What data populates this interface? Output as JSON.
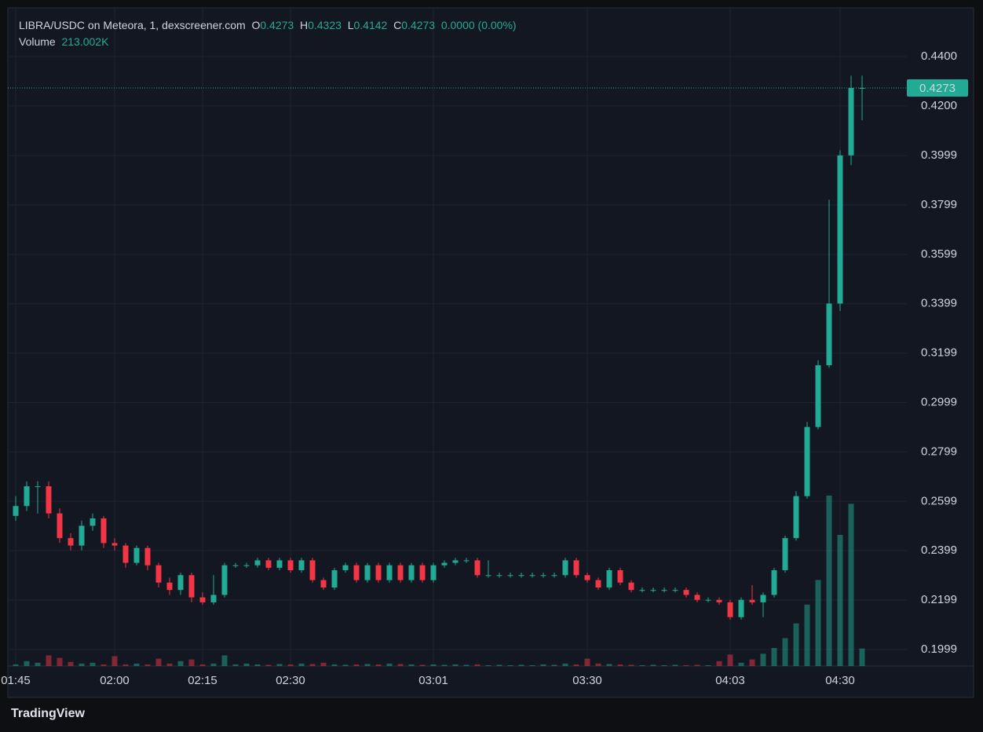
{
  "header": {
    "symbol": "LIBRA/USDC on Meteora, 1, dexscreener.com",
    "ohlc": [
      {
        "label": "O",
        "value": 0.4273
      },
      {
        "label": "H",
        "value": 0.4323
      },
      {
        "label": "L",
        "value": 0.4142
      },
      {
        "label": "C",
        "value": 0.4273
      }
    ],
    "change": "0.0000 (0.00%)",
    "volume_label": "Volume",
    "volume_value": "213.002K"
  },
  "brand": "TradingView",
  "chart_data": {
    "type": "candlestick",
    "categories": [
      "01:45",
      null,
      null,
      null,
      null,
      null,
      null,
      null,
      null,
      "02:00",
      null,
      null,
      null,
      null,
      null,
      null,
      null,
      "02:15",
      null,
      null,
      null,
      null,
      null,
      null,
      null,
      "02:30",
      null,
      null,
      null,
      null,
      null,
      null,
      null,
      null,
      null,
      null,
      null,
      null,
      "03:01",
      null,
      null,
      null,
      null,
      null,
      null,
      null,
      null,
      null,
      null,
      null,
      null,
      null,
      "03:30",
      null,
      null,
      null,
      null,
      null,
      null,
      null,
      null,
      null,
      null,
      null,
      null,
      "04:03",
      null,
      null,
      null,
      null,
      null,
      null,
      null,
      null,
      null,
      "04:30",
      null,
      null
    ],
    "open": [
      0.254,
      0.258,
      0.266,
      0.266,
      0.255,
      0.245,
      0.242,
      0.25,
      0.253,
      0.243,
      0.242,
      0.235,
      0.241,
      0.234,
      0.227,
      0.224,
      0.23,
      0.221,
      0.219,
      0.222,
      0.234,
      0.234,
      0.234,
      0.236,
      0.233,
      0.236,
      0.232,
      0.236,
      0.228,
      0.225,
      0.232,
      0.234,
      0.228,
      0.234,
      0.228,
      0.234,
      0.228,
      0.234,
      0.228,
      0.234,
      0.235,
      0.236,
      0.236,
      0.23,
      0.23,
      0.23,
      0.23,
      0.23,
      0.23,
      0.23,
      0.23,
      0.236,
      0.23,
      0.228,
      0.225,
      0.232,
      0.227,
      0.224,
      0.224,
      0.224,
      0.224,
      0.224,
      0.222,
      0.22,
      0.22,
      0.219,
      0.213,
      0.22,
      0.219,
      0.222,
      0.232,
      0.245,
      0.262,
      0.29,
      0.315,
      0.34,
      0.4,
      0.4273
    ],
    "high": [
      0.262,
      0.268,
      0.268,
      0.268,
      0.257,
      0.247,
      0.252,
      0.255,
      0.254,
      0.245,
      0.243,
      0.242,
      0.242,
      0.235,
      0.229,
      0.231,
      0.231,
      0.223,
      0.23,
      0.235,
      0.235,
      0.235,
      0.237,
      0.237,
      0.237,
      0.237,
      0.237,
      0.237,
      0.229,
      0.233,
      0.235,
      0.235,
      0.235,
      0.235,
      0.235,
      0.235,
      0.235,
      0.235,
      0.235,
      0.236,
      0.237,
      0.237,
      0.237,
      0.236,
      0.231,
      0.231,
      0.231,
      0.231,
      0.231,
      0.231,
      0.237,
      0.237,
      0.231,
      0.229,
      0.233,
      0.233,
      0.228,
      0.225,
      0.225,
      0.225,
      0.225,
      0.225,
      0.223,
      0.221,
      0.221,
      0.22,
      0.221,
      0.226,
      0.223,
      0.233,
      0.246,
      0.264,
      0.292,
      0.317,
      0.382,
      0.402,
      0.4323,
      0.4323
    ],
    "low": [
      0.252,
      0.256,
      0.255,
      0.253,
      0.243,
      0.24,
      0.24,
      0.248,
      0.241,
      0.24,
      0.233,
      0.234,
      0.232,
      0.225,
      0.222,
      0.222,
      0.219,
      0.218,
      0.218,
      0.221,
      0.233,
      0.233,
      0.233,
      0.232,
      0.232,
      0.231,
      0.231,
      0.227,
      0.224,
      0.224,
      0.231,
      0.227,
      0.227,
      0.227,
      0.227,
      0.227,
      0.227,
      0.227,
      0.227,
      0.233,
      0.234,
      0.235,
      0.229,
      0.229,
      0.229,
      0.229,
      0.229,
      0.229,
      0.229,
      0.229,
      0.229,
      0.229,
      0.227,
      0.224,
      0.224,
      0.226,
      0.223,
      0.223,
      0.223,
      0.223,
      0.223,
      0.221,
      0.219,
      0.219,
      0.218,
      0.212,
      0.212,
      0.218,
      0.213,
      0.221,
      0.231,
      0.244,
      0.261,
      0.289,
      0.314,
      0.337,
      0.396,
      0.4142
    ],
    "close": [
      0.258,
      0.266,
      0.266,
      0.255,
      0.245,
      0.242,
      0.25,
      0.253,
      0.243,
      0.242,
      0.235,
      0.241,
      0.234,
      0.227,
      0.224,
      0.23,
      0.221,
      0.219,
      0.222,
      0.234,
      0.234,
      0.234,
      0.236,
      0.233,
      0.236,
      0.232,
      0.236,
      0.228,
      0.225,
      0.232,
      0.234,
      0.228,
      0.234,
      0.228,
      0.234,
      0.228,
      0.234,
      0.228,
      0.234,
      0.235,
      0.236,
      0.236,
      0.23,
      0.23,
      0.23,
      0.23,
      0.23,
      0.23,
      0.23,
      0.23,
      0.236,
      0.23,
      0.228,
      0.225,
      0.232,
      0.227,
      0.224,
      0.224,
      0.224,
      0.224,
      0.224,
      0.222,
      0.22,
      0.22,
      0.219,
      0.213,
      0.22,
      0.219,
      0.222,
      0.232,
      0.245,
      0.262,
      0.29,
      0.315,
      0.34,
      0.4,
      0.4273,
      0.4273
    ],
    "volume": [
      20000,
      60000,
      40000,
      130000,
      100000,
      50000,
      30000,
      40000,
      20000,
      120000,
      20000,
      30000,
      20000,
      90000,
      30000,
      60000,
      80000,
      20000,
      30000,
      130000,
      20000,
      30000,
      20000,
      15000,
      25000,
      20000,
      30000,
      25000,
      40000,
      20000,
      15000,
      20000,
      25000,
      20000,
      30000,
      25000,
      20000,
      15000,
      20000,
      15000,
      20000,
      15000,
      20000,
      10000,
      15000,
      10000,
      15000,
      10000,
      20000,
      15000,
      30000,
      20000,
      90000,
      30000,
      25000,
      20000,
      15000,
      10000,
      15000,
      10000,
      15000,
      10000,
      15000,
      10000,
      60000,
      140000,
      40000,
      80000,
      150000,
      220000,
      340000,
      520000,
      750000,
      1050000,
      2080000,
      1600000,
      1980000,
      213002
    ],
    "volume_lim": [
      0,
      2300000
    ],
    "up_color": "#22ab94",
    "down_color": "#f23645",
    "ylim": [
      0.1932,
      0.4591
    ],
    "yticks": [
      {
        "value": 0.44,
        "label": "0.4400"
      },
      {
        "value": 0.42,
        "label": "0.4200"
      },
      0.3999,
      0.3799,
      0.3599,
      0.3399,
      0.3199,
      0.2999,
      0.2799,
      0.2599,
      0.2399,
      0.2199,
      0.1999
    ],
    "last_price": 0.4273,
    "grid": true
  }
}
